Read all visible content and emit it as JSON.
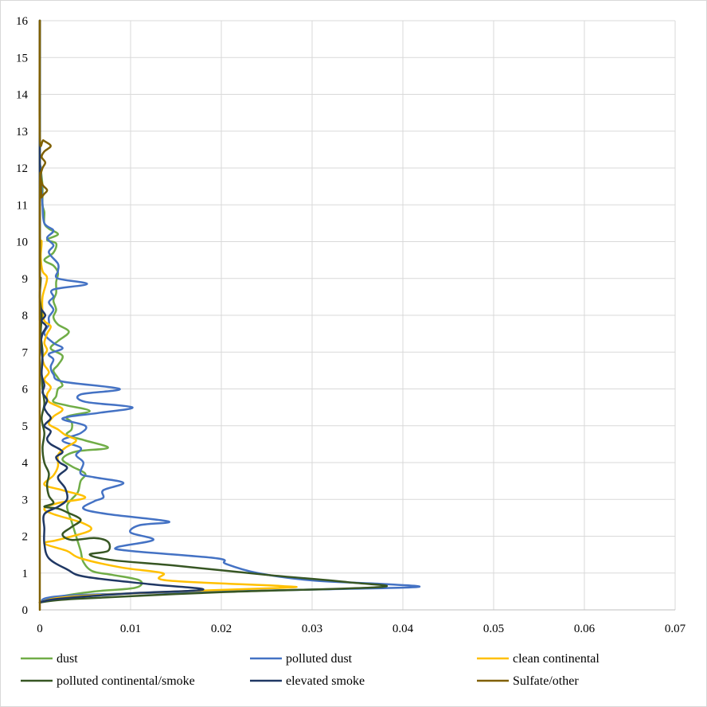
{
  "chart_data": {
    "type": "line",
    "title": "",
    "xlabel": "",
    "ylabel": "",
    "xlim": [
      0,
      0.07
    ],
    "ylim": [
      0,
      16
    ],
    "x_ticks": [
      "0",
      "0.01",
      "0.02",
      "0.03",
      "0.04",
      "0.05",
      "0.06",
      "0.07"
    ],
    "y_ticks": [
      "0",
      "1",
      "2",
      "3",
      "4",
      "5",
      "6",
      "7",
      "8",
      "9",
      "10",
      "11",
      "12",
      "13",
      "14",
      "15",
      "16"
    ],
    "grid": true,
    "legend_position": "bottom",
    "series": [
      {
        "name": "dust",
        "color": "#70ad47",
        "points": [
          [
            0,
            0.2
          ],
          [
            0.002,
            0.35
          ],
          [
            0.006,
            0.5
          ],
          [
            0.0105,
            0.6
          ],
          [
            0.011,
            0.8
          ],
          [
            0.008,
            0.95
          ],
          [
            0.0058,
            1.05
          ],
          [
            0.0048,
            1.3
          ],
          [
            0.0045,
            1.6
          ],
          [
            0.004,
            2.0
          ],
          [
            0.0035,
            2.4
          ],
          [
            0.003,
            2.8
          ],
          [
            0.0035,
            3.0
          ],
          [
            0.0042,
            3.2
          ],
          [
            0.0045,
            3.5
          ],
          [
            0.005,
            3.7
          ],
          [
            0.0035,
            3.9
          ],
          [
            0.0025,
            4.1
          ],
          [
            0.004,
            4.3
          ],
          [
            0.0075,
            4.4
          ],
          [
            0.005,
            4.6
          ],
          [
            0.003,
            4.75
          ],
          [
            0.0035,
            4.9
          ],
          [
            0.0035,
            5.1
          ],
          [
            0.003,
            5.25
          ],
          [
            0.0055,
            5.4
          ],
          [
            0.003,
            5.55
          ],
          [
            0.0015,
            5.65
          ],
          [
            0.0018,
            5.8
          ],
          [
            0.002,
            6.0
          ],
          [
            0.0025,
            6.1
          ],
          [
            0.002,
            6.3
          ],
          [
            0.0015,
            6.5
          ],
          [
            0.002,
            6.65
          ],
          [
            0.0025,
            6.9
          ],
          [
            0.0012,
            7.1
          ],
          [
            0.002,
            7.3
          ],
          [
            0.0032,
            7.55
          ],
          [
            0.002,
            7.75
          ],
          [
            0.0015,
            7.95
          ],
          [
            0.0018,
            8.15
          ],
          [
            0.0015,
            8.4
          ],
          [
            0.0018,
            8.6
          ],
          [
            0.0018,
            8.9
          ],
          [
            0.002,
            9.15
          ],
          [
            0.0015,
            9.35
          ],
          [
            0.0005,
            9.5
          ],
          [
            0.0015,
            9.7
          ],
          [
            0.0018,
            9.95
          ],
          [
            0.0008,
            10.05
          ],
          [
            0.002,
            10.2
          ],
          [
            0.001,
            10.35
          ],
          [
            0.0005,
            10.5
          ],
          [
            0.0005,
            10.8
          ],
          [
            0.0003,
            11.0
          ],
          [
            0.0003,
            11.5
          ],
          [
            0.0001,
            12.0
          ],
          [
            0,
            12.5
          ],
          [
            0,
            16
          ]
        ]
      },
      {
        "name": "polluted dust",
        "color": "#4472c4",
        "points": [
          [
            0,
            0.2
          ],
          [
            0.004,
            0.4
          ],
          [
            0.03,
            0.55
          ],
          [
            0.0415,
            0.62
          ],
          [
            0.038,
            0.7
          ],
          [
            0.03,
            0.8
          ],
          [
            0.024,
            1.0
          ],
          [
            0.0205,
            1.25
          ],
          [
            0.0195,
            1.4
          ],
          [
            0.01,
            1.6
          ],
          [
            0.0085,
            1.7
          ],
          [
            0.0125,
            1.9
          ],
          [
            0.01,
            2.1
          ],
          [
            0.011,
            2.3
          ],
          [
            0.0142,
            2.4
          ],
          [
            0.0075,
            2.6
          ],
          [
            0.0048,
            2.75
          ],
          [
            0.006,
            2.95
          ],
          [
            0.007,
            3.05
          ],
          [
            0.007,
            3.25
          ],
          [
            0.0092,
            3.45
          ],
          [
            0.006,
            3.6
          ],
          [
            0.0045,
            3.7
          ],
          [
            0.0048,
            4.0
          ],
          [
            0.004,
            4.2
          ],
          [
            0.0045,
            4.4
          ],
          [
            0.0025,
            4.6
          ],
          [
            0.0045,
            4.8
          ],
          [
            0.005,
            5.0
          ],
          [
            0.0025,
            5.2
          ],
          [
            0.0065,
            5.35
          ],
          [
            0.0102,
            5.5
          ],
          [
            0.005,
            5.65
          ],
          [
            0.0045,
            5.85
          ],
          [
            0.0088,
            6.0
          ],
          [
            0.0025,
            6.2
          ],
          [
            0.0015,
            6.4
          ],
          [
            0.0012,
            6.6
          ],
          [
            0.0015,
            6.8
          ],
          [
            0.001,
            6.95
          ],
          [
            0.0025,
            7.1
          ],
          [
            0.0015,
            7.25
          ],
          [
            0.0005,
            7.5
          ],
          [
            0.001,
            7.75
          ],
          [
            0.001,
            7.95
          ],
          [
            0.0015,
            8.15
          ],
          [
            0.001,
            8.35
          ],
          [
            0.0015,
            8.5
          ],
          [
            0.0015,
            8.7
          ],
          [
            0.0052,
            8.85
          ],
          [
            0.002,
            9.0
          ],
          [
            0.002,
            9.2
          ],
          [
            0.002,
            9.4
          ],
          [
            0.001,
            9.7
          ],
          [
            0.0015,
            9.9
          ],
          [
            0.0008,
            10.1
          ],
          [
            0.0015,
            10.3
          ],
          [
            0.0005,
            10.5
          ],
          [
            0.0003,
            11.0
          ],
          [
            0.0002,
            11.5
          ],
          [
            0.0001,
            12.0
          ],
          [
            0,
            12.5
          ],
          [
            0,
            16
          ]
        ]
      },
      {
        "name": "clean continental",
        "color": "#ffc000",
        "points": [
          [
            0,
            0.2
          ],
          [
            0.003,
            0.35
          ],
          [
            0.015,
            0.5
          ],
          [
            0.027,
            0.6
          ],
          [
            0.0265,
            0.65
          ],
          [
            0.014,
            0.8
          ],
          [
            0.0135,
            1.0
          ],
          [
            0.009,
            1.15
          ],
          [
            0.0045,
            1.4
          ],
          [
            0.003,
            1.6
          ],
          [
            0.0005,
            1.8
          ],
          [
            0.002,
            1.9
          ],
          [
            0.0055,
            2.15
          ],
          [
            0.0048,
            2.35
          ],
          [
            0.0015,
            2.6
          ],
          [
            0.0005,
            2.75
          ],
          [
            0.002,
            2.9
          ],
          [
            0.005,
            3.05
          ],
          [
            0.0025,
            3.25
          ],
          [
            0.0005,
            3.4
          ],
          [
            0.0015,
            3.65
          ],
          [
            0.002,
            3.9
          ],
          [
            0.002,
            4.2
          ],
          [
            0.0028,
            4.4
          ],
          [
            0.004,
            4.6
          ],
          [
            0.0028,
            4.75
          ],
          [
            0.002,
            4.9
          ],
          [
            0.001,
            5.05
          ],
          [
            0.0015,
            5.25
          ],
          [
            0.0025,
            5.45
          ],
          [
            0.001,
            5.65
          ],
          [
            0.0008,
            5.85
          ],
          [
            0.0012,
            6.05
          ],
          [
            0.0005,
            6.25
          ],
          [
            0.001,
            6.45
          ],
          [
            0.0005,
            6.65
          ],
          [
            0.0003,
            6.85
          ],
          [
            0.0008,
            7.05
          ],
          [
            0.0005,
            7.25
          ],
          [
            0.0008,
            7.5
          ],
          [
            0.0012,
            7.7
          ],
          [
            0.0005,
            7.85
          ],
          [
            0.0003,
            8.1
          ],
          [
            0.0003,
            8.5
          ],
          [
            0.0008,
            9.0
          ],
          [
            0.0003,
            9.2
          ],
          [
            0.0001,
            9.6
          ],
          [
            0.0002,
            10.0
          ],
          [
            0,
            10.5
          ],
          [
            0,
            16
          ]
        ]
      },
      {
        "name": "polluted continental/smoke",
        "color": "#375623",
        "points": [
          [
            0,
            0.2
          ],
          [
            0.004,
            0.3
          ],
          [
            0.02,
            0.48
          ],
          [
            0.0375,
            0.62
          ],
          [
            0.034,
            0.75
          ],
          [
            0.025,
            0.95
          ],
          [
            0.015,
            1.2
          ],
          [
            0.008,
            1.35
          ],
          [
            0.0055,
            1.5
          ],
          [
            0.0075,
            1.6
          ],
          [
            0.0075,
            1.85
          ],
          [
            0.006,
            1.95
          ],
          [
            0.0035,
            1.9
          ],
          [
            0.0025,
            2.05
          ],
          [
            0.0035,
            2.25
          ],
          [
            0.0045,
            2.45
          ],
          [
            0.003,
            2.65
          ],
          [
            0.002,
            2.75
          ],
          [
            0.0005,
            2.8
          ],
          [
            0.0015,
            2.9
          ],
          [
            0.001,
            3.1
          ],
          [
            0.0008,
            3.4
          ],
          [
            0.001,
            3.7
          ],
          [
            0.0005,
            4.0
          ],
          [
            0.0003,
            4.4
          ],
          [
            0.0005,
            4.8
          ],
          [
            0.0002,
            5.2
          ],
          [
            0.0005,
            5.6
          ],
          [
            0.0003,
            6.0
          ],
          [
            0.0002,
            6.5
          ],
          [
            0.0003,
            7.0
          ],
          [
            0.0001,
            7.5
          ],
          [
            0.0002,
            8.0
          ],
          [
            0,
            8.5
          ],
          [
            0.0001,
            9.0
          ],
          [
            0,
            9.5
          ],
          [
            0,
            16
          ]
        ]
      },
      {
        "name": "elevated smoke",
        "color": "#203864",
        "points": [
          [
            0,
            0.2
          ],
          [
            0.002,
            0.3
          ],
          [
            0.01,
            0.45
          ],
          [
            0.018,
            0.55
          ],
          [
            0.012,
            0.7
          ],
          [
            0.005,
            0.9
          ],
          [
            0.003,
            1.1
          ],
          [
            0.001,
            1.4
          ],
          [
            0.0005,
            1.8
          ],
          [
            0.0005,
            2.2
          ],
          [
            0.0005,
            2.6
          ],
          [
            0.002,
            2.8
          ],
          [
            0.003,
            3.0
          ],
          [
            0.0028,
            3.3
          ],
          [
            0.002,
            3.6
          ],
          [
            0.003,
            3.85
          ],
          [
            0.0022,
            4.0
          ],
          [
            0.0018,
            4.15
          ],
          [
            0.0025,
            4.3
          ],
          [
            0.0012,
            4.5
          ],
          [
            0.0008,
            4.65
          ],
          [
            0.0012,
            4.85
          ],
          [
            0.0005,
            5.0
          ],
          [
            0.0012,
            5.2
          ],
          [
            0.0008,
            5.35
          ],
          [
            0.0005,
            5.5
          ],
          [
            0.0008,
            5.7
          ],
          [
            0.0003,
            5.9
          ],
          [
            0.0005,
            6.1
          ],
          [
            0.0002,
            6.4
          ],
          [
            0.0003,
            6.8
          ],
          [
            0.0001,
            7.2
          ],
          [
            0.0003,
            7.5
          ],
          [
            0.0007,
            7.7
          ],
          [
            0.0002,
            7.85
          ],
          [
            0.0006,
            8.0
          ],
          [
            0.0001,
            8.2
          ],
          [
            0,
            8.5
          ],
          [
            0,
            16
          ]
        ]
      },
      {
        "name": "Sulfate/other",
        "color": "#806000",
        "points": [
          [
            0,
            0
          ],
          [
            0,
            11.0
          ],
          [
            0.0002,
            11.2
          ],
          [
            0.0005,
            11.3
          ],
          [
            0.0008,
            11.4
          ],
          [
            0.0003,
            11.55
          ],
          [
            0.0001,
            11.8
          ],
          [
            0.0003,
            12.0
          ],
          [
            0.0006,
            12.15
          ],
          [
            0.0002,
            12.3
          ],
          [
            0.0005,
            12.45
          ],
          [
            0.0012,
            12.6
          ],
          [
            0.0004,
            12.75
          ],
          [
            0,
            12.85
          ],
          [
            0,
            16
          ]
        ]
      }
    ]
  }
}
